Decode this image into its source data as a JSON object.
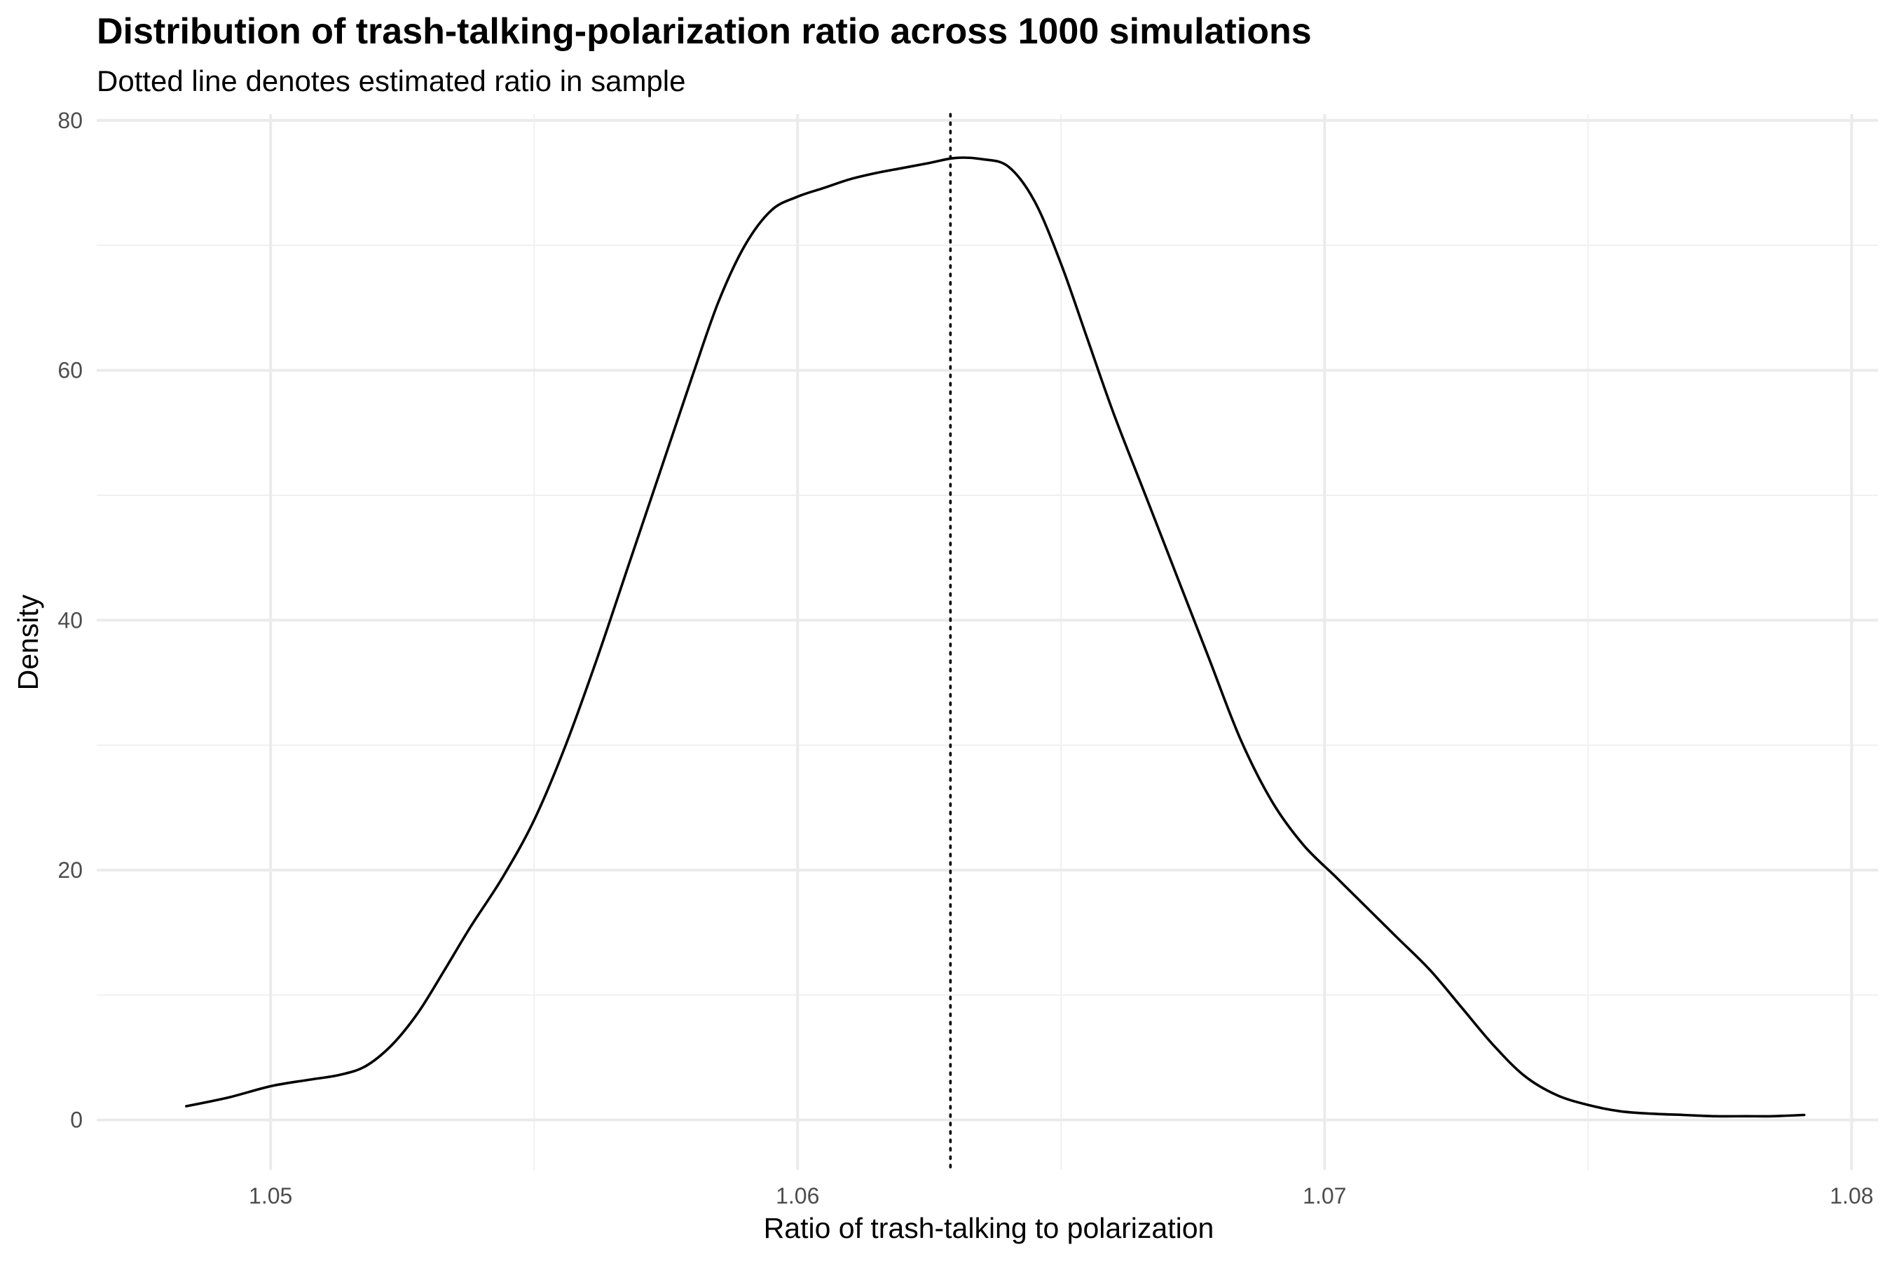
{
  "chart_data": {
    "type": "line",
    "title": "Distribution of trash-talking-polarization ratio across 1000 simulations",
    "subtitle": "Dotted line denotes estimated ratio in sample",
    "xlabel": "Ratio of trash-talking to polarization",
    "ylabel": "Density",
    "xlim": [
      1.0467,
      1.0805
    ],
    "ylim": [
      -4,
      80.5
    ],
    "x_ticks": [
      1.05,
      1.06,
      1.07,
      1.08
    ],
    "x_tick_labels": [
      "1.05",
      "1.06",
      "1.07",
      "1.08"
    ],
    "y_ticks": [
      0,
      20,
      40,
      60,
      80
    ],
    "y_tick_labels": [
      "0",
      "20",
      "40",
      "60",
      "80"
    ],
    "grid": true,
    "reference_line": {
      "x": 1.0629,
      "style": "dotted"
    },
    "series": [
      {
        "x": [
          1.0484,
          1.0492,
          1.05,
          1.0507,
          1.0513,
          1.0518,
          1.0523,
          1.0528,
          1.0533,
          1.0538,
          1.0544,
          1.055,
          1.0556,
          1.0562,
          1.0568,
          1.0574,
          1.058,
          1.0585,
          1.059,
          1.0595,
          1.06,
          1.0605,
          1.061,
          1.0615,
          1.062,
          1.0625,
          1.063,
          1.0635,
          1.064,
          1.0645,
          1.065,
          1.0655,
          1.066,
          1.0666,
          1.0672,
          1.0678,
          1.0684,
          1.069,
          1.0696,
          1.0702,
          1.0708,
          1.0714,
          1.072,
          1.0726,
          1.0732,
          1.0738,
          1.0744,
          1.075,
          1.0756,
          1.0762,
          1.0768,
          1.0774,
          1.078,
          1.0785,
          1.0791
        ],
        "y": [
          1.1,
          1.8,
          2.7,
          3.2,
          3.6,
          4.3,
          6.0,
          8.6,
          12.0,
          15.5,
          19.4,
          24.0,
          30.0,
          37.0,
          44.5,
          52.0,
          59.5,
          65.5,
          70.0,
          72.8,
          73.9,
          74.6,
          75.3,
          75.8,
          76.2,
          76.6,
          77.0,
          76.9,
          76.3,
          73.5,
          68.5,
          62.5,
          56.5,
          50.0,
          43.5,
          37.0,
          30.5,
          25.5,
          22.0,
          19.5,
          17.0,
          14.5,
          12.0,
          9.0,
          6.0,
          3.5,
          2.0,
          1.2,
          0.7,
          0.5,
          0.4,
          0.3,
          0.3,
          0.3,
          0.4
        ]
      }
    ]
  }
}
